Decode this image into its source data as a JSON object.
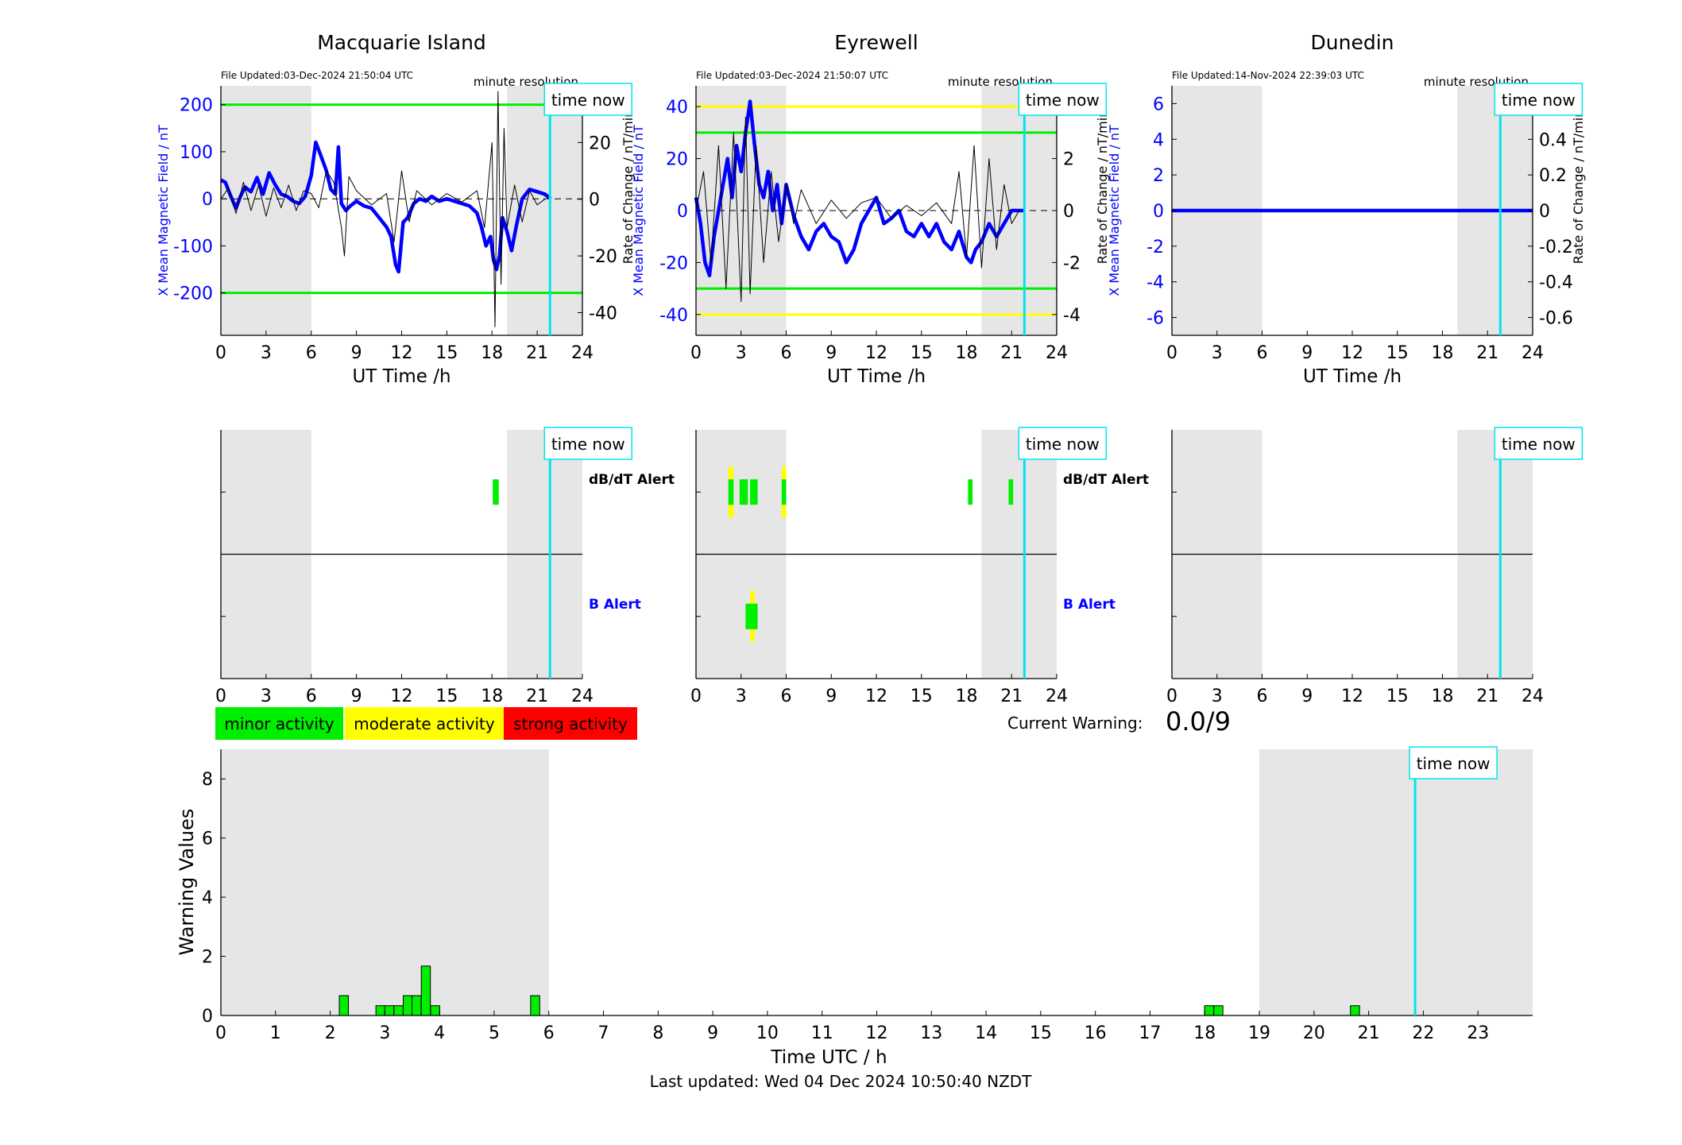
{
  "footer": {
    "last_updated": "Last updated: Wed 04 Dec 2024 10:50:40 NZDT"
  },
  "labels": {
    "time_now": "time now",
    "minute_resolution": "minute resolution",
    "ut_time": "UT Time /h",
    "y_left": "X Mean Magnetic Field / nT",
    "y_right": "Rate of Change / nT/min",
    "dbdt_alert": "dB/dT Alert",
    "b_alert": "B Alert"
  },
  "colors": {
    "field": "#0000ff",
    "rate": "#000000",
    "night": "#e6e6e6",
    "minor": "#00ee00",
    "moderate": "#ffff00",
    "strong": "#ff0000",
    "now": "#00e5ee"
  },
  "legend": [
    {
      "label": "minor activity",
      "color": "#00ee00"
    },
    {
      "label": "moderate activity",
      "color": "#ffff00"
    },
    {
      "label": "strong activity",
      "color": "#ff0000"
    }
  ],
  "current_warning": {
    "label": "Current Warning:",
    "value": "0.0/9"
  },
  "chart_data": [
    {
      "type": "line",
      "title": "Macquarie Island",
      "file_updated": "File Updated:03-Dec-2024 21:50:04 UTC",
      "xlabel": "UT Time /h",
      "ylabel_left": "X Mean Magnetic Field / nT",
      "ylabel_right": "Rate of Change / nT/min",
      "xlim": [
        0,
        24
      ],
      "ylim_left": [
        -290,
        240
      ],
      "ylim_right": [
        -48,
        40
      ],
      "x_ticks": [
        0,
        3,
        6,
        9,
        12,
        15,
        18,
        21,
        24
      ],
      "yticks_left": [
        -200,
        -100,
        0,
        100,
        200
      ],
      "yticks_right": [
        -40,
        -20,
        0,
        20
      ],
      "night_bands": [
        [
          0,
          6
        ],
        [
          19,
          24
        ]
      ],
      "threshold_lines": [
        {
          "y": 200,
          "color": "#00ee00"
        },
        {
          "y": -200,
          "color": "#00ee00"
        }
      ],
      "time_now": 21.85,
      "series": [
        {
          "axis": "left",
          "color": "#0000ff",
          "x": [
            0,
            0.3,
            0.6,
            1.0,
            1.3,
            1.6,
            2.0,
            2.4,
            2.8,
            3.2,
            3.6,
            4.0,
            4.4,
            4.8,
            5.2,
            5.6,
            6.0,
            6.3,
            6.6,
            7.0,
            7.3,
            7.6,
            7.8,
            8.0,
            8.3,
            8.6,
            9.0,
            9.5,
            10.0,
            10.5,
            11.0,
            11.3,
            11.6,
            11.8,
            12.1,
            12.4,
            12.8,
            13.2,
            13.6,
            14.0,
            14.5,
            15.0,
            15.5,
            16.0,
            16.5,
            17.0,
            17.3,
            17.6,
            17.9,
            18.1,
            18.3,
            18.5,
            18.7,
            19.0,
            19.3,
            19.6,
            20.0,
            20.5,
            21.0,
            21.5,
            21.9
          ],
          "y": [
            40,
            35,
            10,
            -20,
            5,
            25,
            15,
            45,
            10,
            55,
            30,
            10,
            5,
            -5,
            -10,
            5,
            50,
            120,
            95,
            60,
            20,
            10,
            110,
            -10,
            -25,
            -15,
            -5,
            -15,
            -20,
            -40,
            -60,
            -80,
            -140,
            -155,
            -50,
            -40,
            -10,
            0,
            -5,
            5,
            -5,
            0,
            -5,
            -10,
            -15,
            -30,
            -60,
            -100,
            -80,
            -130,
            -150,
            -120,
            -40,
            -70,
            -110,
            -60,
            0,
            20,
            15,
            10,
            0
          ]
        },
        {
          "axis": "right",
          "color": "#000000",
          "x": [
            0,
            0.5,
            1.0,
            1.5,
            2.0,
            2.5,
            3.0,
            3.5,
            4.0,
            4.5,
            5.0,
            5.5,
            6.0,
            6.5,
            7.0,
            7.5,
            8.0,
            8.2,
            8.5,
            9.0,
            10.0,
            11.0,
            11.5,
            12.0,
            12.5,
            13.0,
            14.0,
            15.0,
            16.0,
            17.0,
            17.5,
            18.0,
            18.2,
            18.4,
            18.6,
            18.8,
            19.0,
            19.5,
            20.0,
            20.5,
            21.0,
            21.5
          ],
          "y": [
            0,
            4,
            -5,
            6,
            -4,
            5,
            -6,
            4,
            -3,
            5,
            -4,
            3,
            2,
            -3,
            10,
            6,
            -10,
            -20,
            8,
            3,
            -2,
            2,
            -15,
            10,
            -8,
            3,
            -2,
            2,
            -1,
            3,
            -10,
            20,
            -45,
            38,
            -30,
            25,
            -10,
            5,
            -8,
            3,
            -2,
            0
          ]
        }
      ]
    },
    {
      "type": "line",
      "title": "Eyrewell",
      "file_updated": "File Updated:03-Dec-2024 21:50:07 UTC",
      "xlabel": "UT Time /h",
      "ylabel_left": "X Mean Magnetic Field / nT",
      "ylabel_right": "Rate of Change / nT/min",
      "xlim": [
        0,
        24
      ],
      "ylim_left": [
        -48,
        48
      ],
      "ylim_right": [
        -4.8,
        4.8
      ],
      "x_ticks": [
        0,
        3,
        6,
        9,
        12,
        15,
        18,
        21,
        24
      ],
      "yticks_left": [
        -40,
        -20,
        0,
        20,
        40
      ],
      "yticks_right": [
        -4,
        -2,
        0,
        2,
        4
      ],
      "night_bands": [
        [
          0,
          6
        ],
        [
          19,
          24
        ]
      ],
      "threshold_lines": [
        {
          "y": 40,
          "color": "#ffff00"
        },
        {
          "y": 30,
          "color": "#00ee00"
        },
        {
          "y": -30,
          "color": "#00ee00"
        },
        {
          "y": -40,
          "color": "#ffff00"
        }
      ],
      "time_now": 21.85,
      "series": [
        {
          "axis": "left",
          "color": "#0000ff",
          "x": [
            0,
            0.3,
            0.6,
            0.9,
            1.2,
            1.5,
            1.8,
            2.1,
            2.4,
            2.7,
            3.0,
            3.3,
            3.6,
            3.9,
            4.2,
            4.5,
            4.8,
            5.1,
            5.4,
            5.7,
            6.0,
            6.5,
            7.0,
            7.5,
            8.0,
            8.5,
            9.0,
            9.5,
            10.0,
            10.5,
            11.0,
            11.5,
            12.0,
            12.5,
            13.0,
            13.5,
            14.0,
            14.5,
            15.0,
            15.5,
            16.0,
            16.5,
            17.0,
            17.5,
            18.0,
            18.3,
            18.6,
            19.0,
            19.5,
            20.0,
            20.5,
            21.0,
            21.5,
            21.9
          ],
          "y": [
            5,
            -5,
            -20,
            -25,
            -10,
            0,
            10,
            20,
            5,
            25,
            15,
            30,
            42,
            25,
            10,
            5,
            15,
            0,
            10,
            -5,
            10,
            -2,
            -10,
            -15,
            -8,
            -5,
            -10,
            -12,
            -20,
            -15,
            -5,
            0,
            5,
            -5,
            -3,
            0,
            -8,
            -10,
            -5,
            -10,
            -5,
            -12,
            -15,
            -8,
            -18,
            -20,
            -15,
            -12,
            -5,
            -10,
            -5,
            0,
            0,
            0
          ]
        },
        {
          "axis": "right",
          "color": "#000000",
          "x": [
            0,
            0.5,
            1.0,
            1.5,
            2.0,
            2.5,
            3.0,
            3.3,
            3.6,
            4.0,
            4.5,
            5.0,
            5.5,
            6.0,
            6.5,
            7.0,
            8.0,
            9.0,
            10.0,
            11.0,
            12.0,
            13.0,
            14.0,
            15.0,
            16.0,
            17.0,
            17.5,
            18.0,
            18.5,
            19.0,
            19.5,
            20.0,
            20.5,
            21.0,
            21.5
          ],
          "y": [
            0,
            1.5,
            -2,
            2.5,
            -3,
            3,
            -3.5,
            3.6,
            -3.2,
            2.5,
            -2,
            1.5,
            -1.2,
            1,
            -0.5,
            0.8,
            -0.5,
            0.4,
            -0.3,
            0.3,
            0.5,
            -0.3,
            0.2,
            -0.2,
            0.3,
            -0.5,
            1.5,
            -1.8,
            2.5,
            -2.2,
            2.0,
            -1.5,
            1.0,
            -0.5,
            0
          ]
        }
      ]
    },
    {
      "type": "line",
      "title": "Dunedin",
      "file_updated": "File Updated:14-Nov-2024 22:39:03 UTC",
      "xlabel": "UT Time /h",
      "ylabel_left": "X Mean Magnetic Field / nT",
      "ylabel_right": "Rate of Change / nT/min",
      "xlim": [
        0,
        24
      ],
      "ylim_left": [
        -7,
        7
      ],
      "ylim_right": [
        -0.7,
        0.7
      ],
      "x_ticks": [
        0,
        3,
        6,
        9,
        12,
        15,
        18,
        21,
        24
      ],
      "yticks_left": [
        -6,
        -4,
        -2,
        0,
        2,
        4,
        6
      ],
      "yticks_right": [
        -0.6,
        -0.4,
        -0.2,
        0,
        0.2,
        0.4,
        0.6
      ],
      "night_bands": [
        [
          0,
          6
        ],
        [
          19,
          24
        ]
      ],
      "threshold_lines": [],
      "time_now": 21.85,
      "series": [
        {
          "axis": "left",
          "color": "#0000ff",
          "x": [
            0,
            24
          ],
          "y": [
            0,
            0
          ]
        }
      ]
    },
    {
      "type": "alert_timeline",
      "station": "Macquarie Island",
      "xlim": [
        0,
        24
      ],
      "x_ticks": [
        0,
        3,
        6,
        9,
        12,
        15,
        18,
        21,
        24
      ],
      "night_bands": [
        [
          0,
          6
        ],
        [
          19,
          24
        ]
      ],
      "time_now": 21.85,
      "dbdt": [
        {
          "start": 18.05,
          "end": 18.45,
          "level": "minor"
        }
      ],
      "b": []
    },
    {
      "type": "alert_timeline",
      "station": "Eyrewell",
      "xlim": [
        0,
        24
      ],
      "x_ticks": [
        0,
        3,
        6,
        9,
        12,
        15,
        18,
        21,
        24
      ],
      "night_bands": [
        [
          0,
          6
        ],
        [
          19,
          24
        ]
      ],
      "time_now": 21.85,
      "dbdt": [
        {
          "start": 2.15,
          "end": 2.5,
          "level": "moderate"
        },
        {
          "start": 2.15,
          "end": 2.5,
          "level": "minor"
        },
        {
          "start": 2.9,
          "end": 3.45,
          "level": "minor"
        },
        {
          "start": 3.6,
          "end": 4.1,
          "level": "minor"
        },
        {
          "start": 5.7,
          "end": 6.0,
          "level": "moderate"
        },
        {
          "start": 5.7,
          "end": 6.0,
          "level": "minor"
        },
        {
          "start": 18.1,
          "end": 18.4,
          "level": "minor"
        },
        {
          "start": 20.8,
          "end": 21.1,
          "level": "minor"
        }
      ],
      "b": [
        {
          "start": 3.6,
          "end": 3.9,
          "level": "moderate"
        },
        {
          "start": 3.3,
          "end": 4.1,
          "level": "minor"
        }
      ]
    },
    {
      "type": "alert_timeline",
      "station": "Dunedin",
      "xlim": [
        0,
        24
      ],
      "x_ticks": [
        0,
        3,
        6,
        9,
        12,
        15,
        18,
        21,
        24
      ],
      "night_bands": [
        [
          0,
          6
        ],
        [
          19,
          24
        ]
      ],
      "time_now": 21.85,
      "dbdt": [],
      "b": []
    },
    {
      "type": "bar",
      "xlabel": "Time UTC / h",
      "ylabel": "Warning Values",
      "xlim": [
        0,
        24
      ],
      "ylim": [
        0,
        9
      ],
      "x_ticks": [
        0,
        1,
        2,
        3,
        4,
        5,
        6,
        7,
        8,
        9,
        10,
        11,
        12,
        13,
        14,
        15,
        16,
        17,
        18,
        19,
        20,
        21,
        22,
        23
      ],
      "y_ticks": [
        0,
        2,
        4,
        6,
        8
      ],
      "night_bands": [
        [
          0,
          6
        ],
        [
          19,
          24
        ]
      ],
      "time_now": 21.85,
      "bar_width": 0.1667,
      "x": [
        2.25,
        2.92,
        3.08,
        3.25,
        3.42,
        3.58,
        3.75,
        3.92,
        5.75,
        18.08,
        18.25,
        20.75
      ],
      "values": [
        0.67,
        0.33,
        0.33,
        0.33,
        0.67,
        0.67,
        1.67,
        0.33,
        0.67,
        0.33,
        0.33,
        0.33
      ]
    }
  ]
}
